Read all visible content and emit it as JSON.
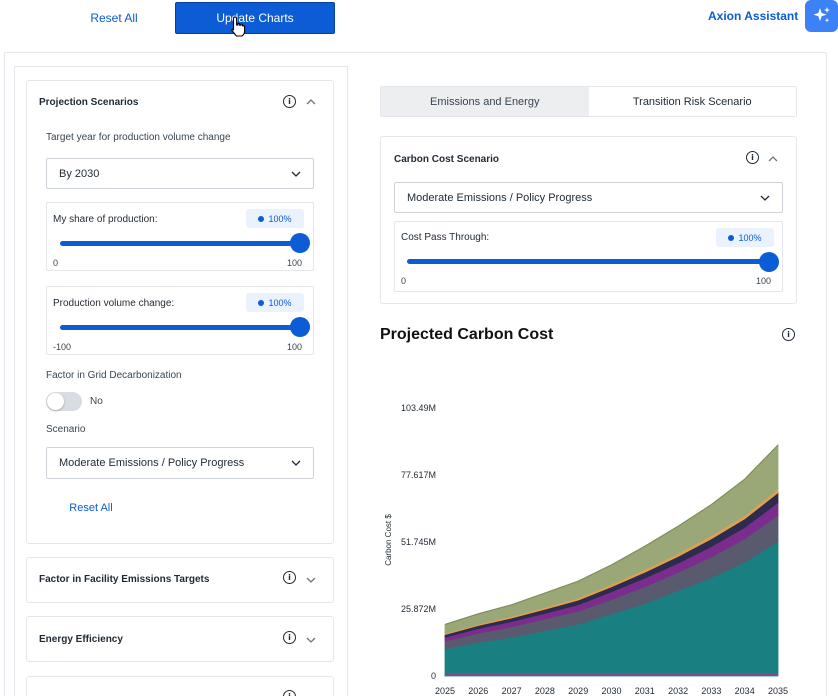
{
  "toolbar": {
    "reset_all_label": "Reset All",
    "update_charts_label": "Update Charts",
    "assistant_label": "Axion Assistant"
  },
  "projection": {
    "title": "Projection Scenarios",
    "target_year_label": "Target year for production volume change",
    "target_year_value": "By 2030",
    "share_slider": {
      "label": "My share of production:",
      "badge": "100%",
      "value": 100,
      "min_label": "0",
      "max_label": "100"
    },
    "volume_slider": {
      "label": "Production volume change:",
      "badge": "100%",
      "value": 100,
      "min_label": "-100",
      "max_label": "100"
    },
    "grid_label": "Factor in Grid Decarbonization",
    "grid_toggle_text": "No",
    "grid_toggle_on": false,
    "scenario_label": "Scenario",
    "scenario_value": "Moderate Emissions / Policy Progress",
    "reset_all_label": "Reset All"
  },
  "collapsed_cards": [
    {
      "title": "Factor in Facility Emissions Targets"
    },
    {
      "title": "Energy Efficiency"
    }
  ],
  "tabs": [
    {
      "label": "Emissions and Energy",
      "active": false
    },
    {
      "label": "Transition Risk Scenario",
      "active": true
    }
  ],
  "carbon_cost": {
    "title": "Carbon Cost Scenario",
    "scenario_value": "Moderate Emissions / Policy Progress",
    "pass_through": {
      "label": "Cost Pass Through:",
      "badge": "100%",
      "value": 100,
      "min_label": "0",
      "max_label": "100"
    }
  },
  "colors": {
    "primary": "#0b5cd5",
    "assistant": "#3b82f6"
  },
  "chart_data": {
    "type": "area",
    "title": "Projected Carbon Cost",
    "ylabel": "Carbon Cost $",
    "xlabel": "",
    "x": [
      "2025",
      "2026",
      "2027",
      "2028",
      "2029",
      "2030",
      "2031",
      "2032",
      "2033",
      "2034",
      "2035"
    ],
    "ylim": [
      0,
      103.49
    ],
    "yticks": [
      "0",
      "25.872M",
      "51.745M",
      "77.617M",
      "103.49M"
    ],
    "ytick_values": [
      0,
      25.872,
      51.745,
      77.617,
      103.49
    ],
    "series": [
      {
        "color": "#1a7f80",
        "values": [
          10.5,
          13,
          15,
          17.5,
          20,
          24,
          28,
          33,
          38,
          44,
          52
        ]
      },
      {
        "color": "#5a5a6e",
        "values": [
          3,
          3.5,
          4,
          4.5,
          5,
          5.5,
          6.5,
          7,
          8,
          9,
          10
        ]
      },
      {
        "color": "#7b2d8e",
        "values": [
          1.5,
          1.8,
          2,
          2.2,
          2.5,
          3,
          3.3,
          3.6,
          4,
          4.4,
          5
        ]
      },
      {
        "color": "#2d2b4e",
        "values": [
          1,
          1.2,
          1.4,
          1.6,
          1.8,
          2,
          2.3,
          2.6,
          3,
          3.3,
          3.8
        ]
      },
      {
        "color": "#e0a050",
        "values": [
          0.4,
          0.5,
          0.6,
          0.7,
          0.8,
          0.9,
          1,
          1.1,
          1.2,
          1.3,
          1.4
        ]
      },
      {
        "color": "#9aa878",
        "values": [
          3.5,
          4,
          4.5,
          5.5,
          6.5,
          7.5,
          9,
          10.5,
          12,
          14,
          17
        ]
      }
    ]
  }
}
